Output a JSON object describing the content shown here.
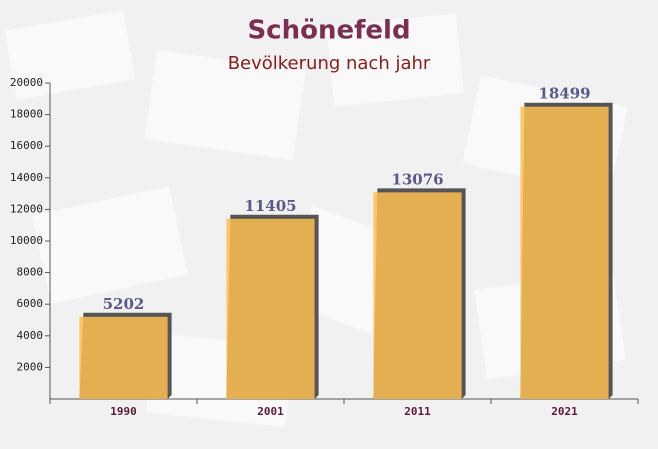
{
  "chart_data": {
    "type": "bar",
    "title": "Schönefeld",
    "subtitle": "Bevölkerung nach jahr",
    "categories": [
      "1990",
      "2001",
      "2011",
      "2021"
    ],
    "values": [
      5202,
      11405,
      13076,
      18499
    ],
    "color": "#fdbf50",
    "ylim": [
      0,
      20000
    ],
    "yticks": [
      2000,
      4000,
      6000,
      8000,
      10000,
      12000,
      14000,
      16000,
      18000,
      20000
    ]
  }
}
